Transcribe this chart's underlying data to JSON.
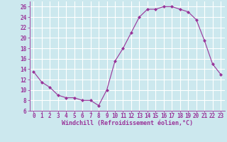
{
  "x": [
    0,
    1,
    2,
    3,
    4,
    5,
    6,
    7,
    8,
    9,
    10,
    11,
    12,
    13,
    14,
    15,
    16,
    17,
    18,
    19,
    20,
    21,
    22,
    23
  ],
  "y": [
    13.5,
    11.5,
    10.5,
    9.0,
    8.5,
    8.5,
    8.0,
    8.0,
    7.0,
    10.0,
    15.5,
    18.0,
    21.0,
    24.0,
    25.5,
    25.5,
    26.0,
    26.0,
    25.5,
    25.0,
    23.5,
    19.5,
    15.0,
    13.0
  ],
  "line_color": "#993399",
  "marker": "D",
  "marker_size": 2,
  "bg_color": "#cce8ee",
  "grid_color": "#ffffff",
  "xlabel": "Windchill (Refroidissement éolien,°C)",
  "xlabel_color": "#993399",
  "tick_color": "#993399",
  "ylim": [
    6,
    27
  ],
  "xlim": [
    -0.5,
    23.5
  ],
  "yticks": [
    6,
    8,
    10,
    12,
    14,
    16,
    18,
    20,
    22,
    24,
    26
  ],
  "xticks": [
    0,
    1,
    2,
    3,
    4,
    5,
    6,
    7,
    8,
    9,
    10,
    11,
    12,
    13,
    14,
    15,
    16,
    17,
    18,
    19,
    20,
    21,
    22,
    23
  ]
}
